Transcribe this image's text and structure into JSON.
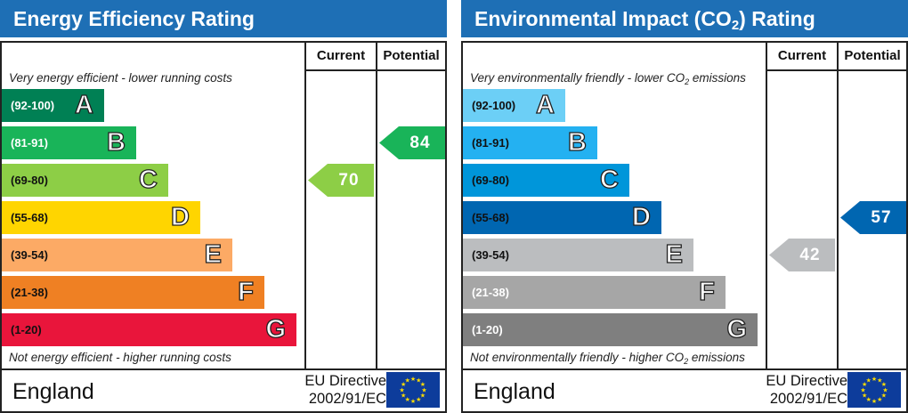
{
  "colors": {
    "title_bar": "#1e6fb5",
    "eu_flag": "#0d3c9b",
    "eu_stars": "#ffdd00"
  },
  "energy": {
    "title": "Energy Efficiency Rating",
    "header_current": "Current",
    "header_potential": "Potential",
    "top_note": "Very energy efficient - lower running costs",
    "bottom_note": "Not energy efficient - higher running costs",
    "country": "England",
    "directive_line1": "EU Directive",
    "directive_line2": "2002/91/EC",
    "flag_icon": "eu-flag-icon",
    "current": "70",
    "potential": "84"
  },
  "environment": {
    "title_pre": "Environmental Impact (CO",
    "title_sub": "2",
    "title_post": ") Rating",
    "header_current": "Current",
    "header_potential": "Potential",
    "top_note_pre": "Very environmentally friendly - lower CO",
    "top_note_sub": "2",
    "top_note_post": " emissions",
    "bottom_note_pre": "Not environmentally friendly - higher CO",
    "bottom_note_sub": "2",
    "bottom_note_post": " emissions",
    "country": "England",
    "directive_line1": "EU Directive",
    "directive_line2": "2002/91/EC",
    "flag_icon": "eu-flag-icon",
    "current": "42",
    "potential": "57"
  },
  "chart_data": [
    {
      "type": "bar",
      "title": "Energy Efficiency Rating",
      "categories": [
        "A",
        "B",
        "C",
        "D",
        "E",
        "F",
        "G"
      ],
      "ranges": [
        "(92-100)",
        "(81-91)",
        "(69-80)",
        "(55-68)",
        "(39-54)",
        "(21-38)",
        "(1-20)"
      ],
      "band_colors": [
        "#008054",
        "#19b459",
        "#8dce46",
        "#ffd500",
        "#fcaa65",
        "#ef8023",
        "#e9153b"
      ],
      "range_text_colors": [
        "#ffffff",
        "#ffffff",
        "#111111",
        "#111111",
        "#111111",
        "#111111",
        "#111111"
      ],
      "series": [
        {
          "name": "Current",
          "value": 70,
          "band": "C",
          "color": "#8dce46"
        },
        {
          "name": "Potential",
          "value": 84,
          "band": "B",
          "color": "#19b459"
        }
      ]
    },
    {
      "type": "bar",
      "title": "Environmental Impact (CO2) Rating",
      "categories": [
        "A",
        "B",
        "C",
        "D",
        "E",
        "F",
        "G"
      ],
      "ranges": [
        "(92-100)",
        "(81-91)",
        "(69-80)",
        "(55-68)",
        "(39-54)",
        "(21-38)",
        "(1-20)"
      ],
      "band_colors": [
        "#6ccff6",
        "#24b1f1",
        "#0096da",
        "#0066b1",
        "#bbbdbf",
        "#a6a6a6",
        "#7f7f7f"
      ],
      "range_text_colors": [
        "#111111",
        "#111111",
        "#111111",
        "#111111",
        "#111111",
        "#ffffff",
        "#ffffff"
      ],
      "series": [
        {
          "name": "Current",
          "value": 42,
          "band": "E",
          "color": "#bbbdbf"
        },
        {
          "name": "Potential",
          "value": 57,
          "band": "D",
          "color": "#0066b1"
        }
      ]
    }
  ]
}
